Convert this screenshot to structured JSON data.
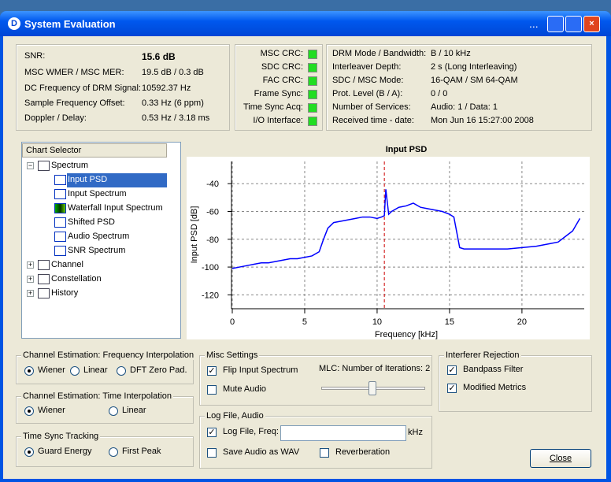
{
  "window": {
    "title": "System Evaluation"
  },
  "status": {
    "rows": [
      [
        "SNR:",
        "15.6 dB"
      ],
      [
        "MSC WMER / MSC MER:",
        "19.5 dB / 0.3 dB"
      ],
      [
        "DC Frequency of DRM Signal:",
        "10592.37 Hz"
      ],
      [
        "Sample Frequency Offset:",
        "0.33 Hz (6 ppm)"
      ],
      [
        "Doppler / Delay:",
        "0.53 Hz / 3.18 ms"
      ]
    ]
  },
  "crc": {
    "color": "#22dd22",
    "items": [
      "MSC CRC:",
      "SDC CRC:",
      "FAC CRC:",
      "Frame Sync:",
      "Time Sync Acq:",
      "I/O Interface:"
    ]
  },
  "drm": {
    "rows": [
      [
        "DRM Mode / Bandwidth:",
        "B / 10 kHz"
      ],
      [
        "Interleaver Depth:",
        "2 s (Long Interleaving)"
      ],
      [
        "SDC / MSC Mode:",
        "16-QAM / SM 64-QAM"
      ],
      [
        "Prot. Level (B / A):",
        "0 / 0"
      ],
      [
        "Number of Services:",
        "Audio: 1 / Data: 1"
      ],
      [
        "Received time - date:",
        "Mon Jun 16 15:27:00 2008"
      ]
    ]
  },
  "chart_selector": {
    "header": "Chart Selector",
    "items": [
      {
        "label": "Spectrum",
        "level": 0,
        "expanded": true
      },
      {
        "label": "Input PSD",
        "level": 1,
        "selected": true
      },
      {
        "label": "Input Spectrum",
        "level": 1
      },
      {
        "label": "Waterfall Input Spectrum",
        "level": 1
      },
      {
        "label": "Shifted PSD",
        "level": 1
      },
      {
        "label": "Audio Spectrum",
        "level": 1
      },
      {
        "label": "SNR Spectrum",
        "level": 1
      },
      {
        "label": "Channel",
        "level": 0,
        "expanded": false
      },
      {
        "label": "Constellation",
        "level": 0,
        "expanded": false
      },
      {
        "label": "History",
        "level": 0,
        "expanded": false
      }
    ]
  },
  "chart_data": {
    "type": "line",
    "title": "Input PSD",
    "x_label": "Frequency [kHz]",
    "y_label": "Input PSD [dB]",
    "x": [
      0,
      0.5,
      1,
      1.5,
      2,
      2.5,
      3,
      3.5,
      4,
      4.5,
      5,
      5.5,
      6,
      6.3,
      6.6,
      7,
      7.5,
      8,
      8.5,
      9,
      9.5,
      10,
      10.3,
      10.5,
      10.6,
      10.8,
      11,
      11.5,
      12,
      12.5,
      13,
      13.5,
      14,
      14.5,
      15,
      15.3,
      15.5,
      15.7,
      16,
      17,
      18,
      19,
      20,
      21,
      22,
      22.5,
      23,
      23.5,
      24
    ],
    "series": [
      {
        "color": "#0000ff",
        "values": [
          -101,
          -100,
          -99,
          -98,
          -97,
          -97,
          -96,
          -95,
          -94,
          -94,
          -93,
          -92,
          -89,
          -80,
          -72,
          -68,
          -67,
          -66,
          -65,
          -64,
          -64,
          -65,
          -64,
          -63,
          -44,
          -62,
          -60,
          -57,
          -56,
          -54,
          -57,
          -58,
          -59,
          -60,
          -62,
          -64,
          -75,
          -86,
          -87,
          -87,
          -87,
          -87,
          -86,
          -85,
          -83,
          -82,
          -78,
          -74,
          -65
        ]
      }
    ],
    "xlim": [
      0,
      24.3
    ],
    "ylim": [
      -130,
      -24
    ],
    "xticks": [
      0,
      5,
      10,
      15,
      20
    ],
    "yticks": [
      -40,
      -60,
      -80,
      -100,
      -120
    ],
    "grid": true,
    "marker_x": 10.5,
    "marker_color": "#cc0000"
  },
  "freq_interp": {
    "title": "Channel Estimation: Frequency Interpolation",
    "options": [
      "Wiener",
      "Linear",
      "DFT Zero Pad."
    ],
    "selected": 0
  },
  "time_interp": {
    "title": "Channel Estimation: Time Interpolation",
    "options": [
      "Wiener",
      "Linear"
    ],
    "selected": 0
  },
  "time_sync": {
    "title": "Time Sync Tracking",
    "options": [
      "Guard Energy",
      "First Peak"
    ],
    "selected": 0
  },
  "misc": {
    "title": "Misc Settings",
    "checks": [
      {
        "label": "Flip Input Spectrum",
        "checked": true
      },
      {
        "label": "Mute Audio",
        "checked": false
      }
    ],
    "mlc_label": "MLC: Number of Iterations: 2"
  },
  "log": {
    "title": "Log File, Audio",
    "log_check": {
      "label": "Log File, Freq:",
      "checked": true
    },
    "unit": "kHz",
    "wav": {
      "label": "Save Audio as WAV",
      "checked": false
    },
    "reverb": {
      "label": "Reverberation",
      "checked": false
    }
  },
  "interferer": {
    "title": "Interferer Rejection",
    "checks": [
      {
        "label": "Bandpass Filter",
        "checked": true
      },
      {
        "label": "Modified Metrics",
        "checked": true
      }
    ]
  },
  "close": "Close"
}
